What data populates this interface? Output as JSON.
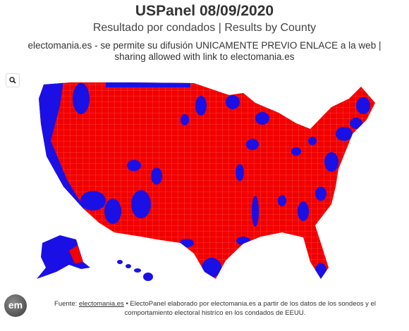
{
  "header": {
    "title": "USPanel 08/09/2020",
    "subtitle": "Resultado por condados | Results by County",
    "notice": "electomania.es - se permite su difusión UNICAMENTE PREVIO ENLACE a la web | sharing allowed with link to electomania.es"
  },
  "logo": "em",
  "footer": {
    "prefix": "Fuente:",
    "link": "electomania.es",
    "text": "• ElectoPanel elaborado por electomania.es a partir de los datos de los sondeos y el comportamiento electoral histríco en los condados de EEUU."
  }
}
